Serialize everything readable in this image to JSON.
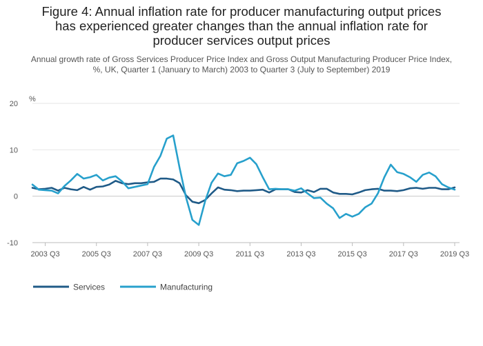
{
  "title_lines": [
    "Figure 4: Annual inflation rate for producer manufacturing output prices",
    "has experienced greater changes than the annual inflation rate for",
    "producer services output prices"
  ],
  "subtitle_lines": [
    "Annual growth rate of Gross Services Producer Price Index and Gross Output Manufacturing Producer Price Index,",
    "%, UK, Quarter 1 (January to March) 2003 to Quarter 3 (July to September) 2019"
  ],
  "chart_data": {
    "type": "line",
    "title": "Figure 4: Annual inflation rate for producer manufacturing output prices has experienced greater changes than the annual inflation rate for producer services output prices",
    "ylabel": "%",
    "ylim": [
      -10,
      20
    ],
    "yticks": [
      -10,
      0,
      10,
      20
    ],
    "x_labels": [
      "2003 Q3",
      "2005 Q3",
      "2007 Q3",
      "2009 Q3",
      "2011 Q3",
      "2013 Q3",
      "2015 Q3",
      "2017 Q3",
      "2019 Q3"
    ],
    "x_label_indices": [
      2,
      10,
      18,
      26,
      34,
      42,
      50,
      58,
      66
    ],
    "grid": true,
    "legend_position": "bottom-left",
    "series": [
      {
        "name": "Services",
        "color": "#1f5a87",
        "values": [
          1.8,
          1.5,
          1.6,
          1.8,
          1.2,
          1.8,
          1.5,
          1.3,
          2.0,
          1.4,
          2.0,
          2.1,
          2.5,
          3.3,
          2.8,
          2.6,
          2.8,
          2.8,
          3.0,
          3.1,
          3.8,
          3.8,
          3.6,
          2.8,
          0.2,
          -1.2,
          -1.5,
          -0.8,
          0.6,
          1.9,
          1.4,
          1.3,
          1.1,
          1.2,
          1.2,
          1.3,
          1.4,
          0.8,
          1.5,
          1.5,
          1.5,
          0.9,
          0.8,
          1.3,
          0.9,
          1.6,
          1.6,
          0.8,
          0.5,
          0.5,
          0.4,
          0.8,
          1.3,
          1.5,
          1.6,
          1.2,
          1.2,
          1.1,
          1.3,
          1.7,
          1.8,
          1.6,
          1.8,
          1.8,
          1.5,
          1.5,
          1.9
        ]
      },
      {
        "name": "Manufacturing",
        "color": "#27a0cc",
        "values": [
          2.5,
          1.4,
          1.3,
          1.2,
          0.6,
          2.2,
          3.4,
          4.8,
          3.8,
          4.1,
          4.6,
          3.4,
          4.0,
          4.3,
          3.2,
          1.7,
          2.0,
          2.3,
          2.6,
          6.3,
          8.7,
          12.4,
          13.1,
          6.1,
          -0.2,
          -5.1,
          -6.2,
          -1.0,
          2.9,
          4.9,
          4.3,
          4.6,
          7.1,
          7.6,
          8.3,
          6.9,
          4.1,
          1.5,
          1.6,
          1.5,
          1.5,
          1.2,
          1.7,
          0.6,
          -0.4,
          -0.3,
          -1.6,
          -2.6,
          -4.7,
          -3.8,
          -4.4,
          -3.8,
          -2.4,
          -1.6,
          0.6,
          4.1,
          6.8,
          5.2,
          4.8,
          4.1,
          3.1,
          4.6,
          5.1,
          4.3,
          2.6,
          1.9,
          1.4
        ]
      }
    ]
  }
}
